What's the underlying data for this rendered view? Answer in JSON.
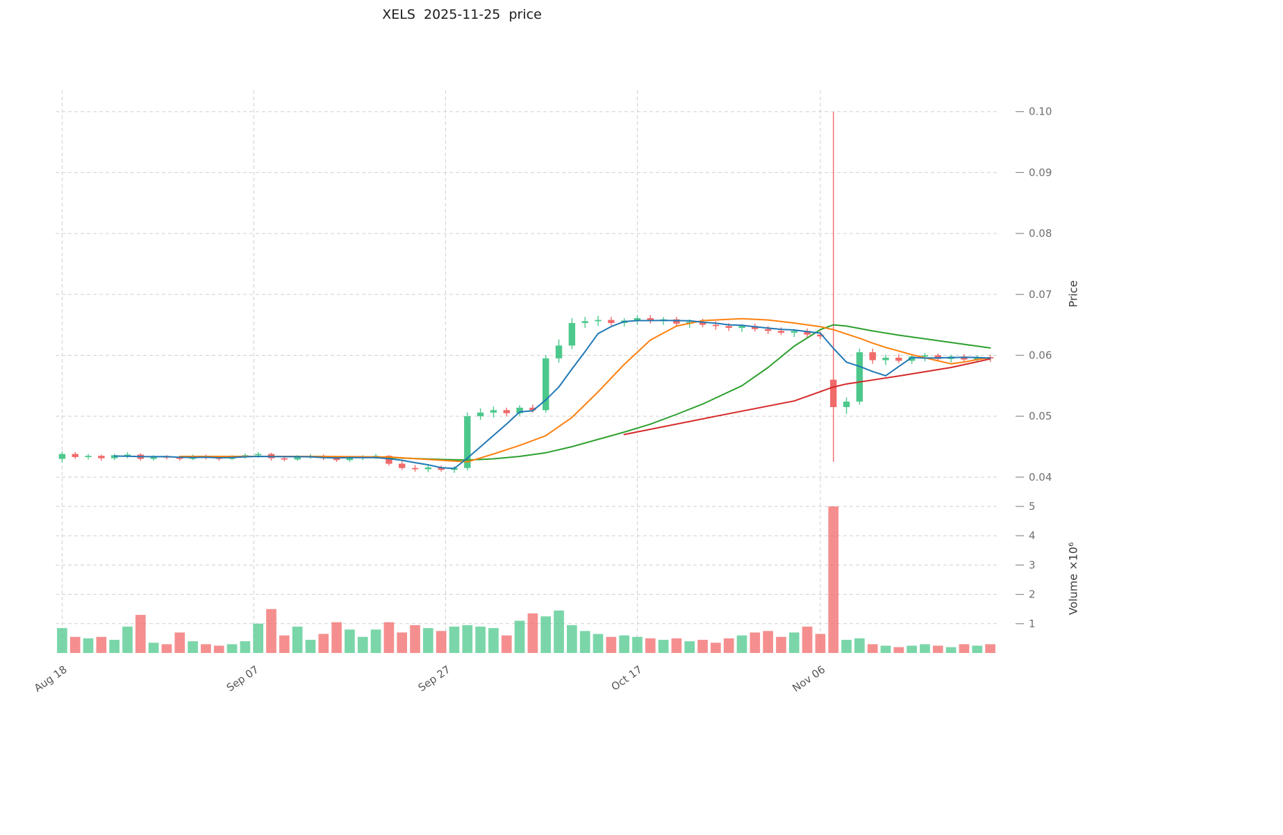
{
  "title": "XELS  2025-11-25  price",
  "axes": {
    "price_label": "Price",
    "volume_label": "Volume ×10⁶",
    "price_ticks": [
      0.04,
      0.05,
      0.06,
      0.07,
      0.08,
      0.09,
      0.1
    ],
    "price_ylim": [
      0.0385,
      0.1035
    ],
    "volume_ticks": [
      1,
      2,
      3,
      4,
      5
    ],
    "volume_ylim": [
      0,
      5.45
    ],
    "x_ticks": [
      {
        "label": "Aug 18",
        "index": 0
      },
      {
        "label": "Sep 07",
        "index": 14.67
      },
      {
        "label": "Sep 27",
        "index": 29.33
      },
      {
        "label": "Oct 17",
        "index": 44
      },
      {
        "label": "Nov 06",
        "index": 58
      }
    ],
    "grid": "dashed"
  },
  "colors": {
    "up": "#4dc88c",
    "down": "#f16a6a",
    "ma_fast": "#1f77b4",
    "ma_mid": "#ff7f0e",
    "ma_slow": "#2ca02c",
    "ma_long": "#d62728",
    "grid": "#cfcfcf",
    "tick_label": "#707070",
    "x_tick_label": "#555555",
    "axis_label": "#3a3a3a",
    "title": "#1a1a1a",
    "background": "#ffffff"
  },
  "chart_data": {
    "type": "candlestick",
    "symbol": "XELS",
    "as_of_date": "2025-11-25",
    "title": "XELS  2025-11-25  price",
    "ylabel_price": "Price",
    "ylabel_volume": "Volume ×10⁶",
    "dates": [
      "2025-08-18",
      "2025-08-19",
      "2025-08-20",
      "2025-08-21",
      "2025-08-22",
      "2025-08-25",
      "2025-08-26",
      "2025-08-27",
      "2025-08-28",
      "2025-08-29",
      "2025-09-01",
      "2025-09-02",
      "2025-09-03",
      "2025-09-04",
      "2025-09-05",
      "2025-09-08",
      "2025-09-09",
      "2025-09-10",
      "2025-09-11",
      "2025-09-12",
      "2025-09-15",
      "2025-09-16",
      "2025-09-17",
      "2025-09-18",
      "2025-09-19",
      "2025-09-22",
      "2025-09-23",
      "2025-09-24",
      "2025-09-25",
      "2025-09-26",
      "2025-09-29",
      "2025-09-30",
      "2025-10-01",
      "2025-10-02",
      "2025-10-03",
      "2025-10-06",
      "2025-10-07",
      "2025-10-08",
      "2025-10-09",
      "2025-10-10",
      "2025-10-13",
      "2025-10-14",
      "2025-10-15",
      "2025-10-16",
      "2025-10-17",
      "2025-10-20",
      "2025-10-21",
      "2025-10-22",
      "2025-10-23",
      "2025-10-24",
      "2025-10-27",
      "2025-10-28",
      "2025-10-29",
      "2025-10-30",
      "2025-10-31",
      "2025-11-03",
      "2025-11-04",
      "2025-11-05",
      "2025-11-06",
      "2025-11-07",
      "2025-11-10",
      "2025-11-11",
      "2025-11-12",
      "2025-11-13",
      "2025-11-14",
      "2025-11-17",
      "2025-11-18",
      "2025-11-19",
      "2025-11-20",
      "2025-11-21",
      "2025-11-24",
      "2025-11-25"
    ],
    "open": [
      0.043,
      0.0438,
      0.0433,
      0.0435,
      0.0431,
      0.0436,
      0.0437,
      0.043,
      0.0434,
      0.0432,
      0.043,
      0.0435,
      0.0432,
      0.043,
      0.0434,
      0.0436,
      0.0438,
      0.0431,
      0.0429,
      0.0434,
      0.0435,
      0.0431,
      0.0428,
      0.0432,
      0.0434,
      0.0435,
      0.0422,
      0.0415,
      0.0413,
      0.0416,
      0.0412,
      0.0415,
      0.05,
      0.0506,
      0.051,
      0.0505,
      0.0514,
      0.051,
      0.0595,
      0.0616,
      0.0653,
      0.0656,
      0.0658,
      0.0653,
      0.0657,
      0.0661,
      0.0656,
      0.0659,
      0.0652,
      0.0655,
      0.065,
      0.0648,
      0.0645,
      0.0648,
      0.0643,
      0.064,
      0.0637,
      0.064,
      0.0634,
      0.056,
      0.0515,
      0.0524,
      0.0605,
      0.0592,
      0.0596,
      0.0591,
      0.0598,
      0.06,
      0.0594,
      0.0598,
      0.0593,
      0.0597
    ],
    "high": [
      0.0442,
      0.0441,
      0.0438,
      0.0437,
      0.0438,
      0.0441,
      0.0439,
      0.0436,
      0.0436,
      0.0435,
      0.0437,
      0.0437,
      0.0434,
      0.0436,
      0.0439,
      0.0441,
      0.044,
      0.0434,
      0.0436,
      0.0438,
      0.0437,
      0.0433,
      0.0434,
      0.0436,
      0.0438,
      0.0436,
      0.0426,
      0.042,
      0.0419,
      0.0419,
      0.0418,
      0.0506,
      0.0513,
      0.0516,
      0.0514,
      0.0518,
      0.0519,
      0.06,
      0.0626,
      0.0661,
      0.0663,
      0.0665,
      0.0663,
      0.0661,
      0.0666,
      0.0666,
      0.0663,
      0.0663,
      0.0659,
      0.066,
      0.0656,
      0.0653,
      0.0651,
      0.0652,
      0.0648,
      0.0646,
      0.0643,
      0.0644,
      0.0639,
      0.1,
      0.0531,
      0.0611,
      0.0611,
      0.0601,
      0.0602,
      0.0601,
      0.0604,
      0.0603,
      0.0601,
      0.0602,
      0.06,
      0.0601
    ],
    "low": [
      0.0424,
      0.043,
      0.0429,
      0.0427,
      0.0428,
      0.0431,
      0.0427,
      0.0427,
      0.0429,
      0.0427,
      0.0428,
      0.0429,
      0.0427,
      0.0428,
      0.043,
      0.0432,
      0.0427,
      0.0426,
      0.0427,
      0.043,
      0.0428,
      0.0425,
      0.0425,
      0.0428,
      0.043,
      0.0419,
      0.0412,
      0.0409,
      0.0408,
      0.0409,
      0.0407,
      0.0411,
      0.0494,
      0.0498,
      0.05,
      0.0501,
      0.0506,
      0.0506,
      0.0588,
      0.061,
      0.0645,
      0.0648,
      0.0649,
      0.0647,
      0.065,
      0.0652,
      0.065,
      0.0648,
      0.0645,
      0.0646,
      0.0642,
      0.064,
      0.0638,
      0.0639,
      0.0635,
      0.0633,
      0.063,
      0.0629,
      0.0626,
      0.0425,
      0.0504,
      0.0519,
      0.0586,
      0.0584,
      0.0587,
      0.0586,
      0.059,
      0.0591,
      0.0588,
      0.059,
      0.0588,
      0.0589
    ],
    "close": [
      0.0438,
      0.0433,
      0.0435,
      0.0431,
      0.0436,
      0.0437,
      0.043,
      0.0434,
      0.0432,
      0.043,
      0.0435,
      0.0432,
      0.043,
      0.0434,
      0.0436,
      0.0438,
      0.0431,
      0.0429,
      0.0434,
      0.0435,
      0.0431,
      0.0428,
      0.0432,
      0.0434,
      0.0435,
      0.0422,
      0.0415,
      0.0413,
      0.0416,
      0.0412,
      0.0415,
      0.05,
      0.0506,
      0.051,
      0.0505,
      0.0514,
      0.051,
      0.0595,
      0.0616,
      0.0653,
      0.0656,
      0.0658,
      0.0653,
      0.0657,
      0.0661,
      0.0656,
      0.0659,
      0.0652,
      0.0655,
      0.065,
      0.0648,
      0.0645,
      0.0648,
      0.0643,
      0.064,
      0.0637,
      0.064,
      0.0634,
      0.0631,
      0.0515,
      0.0524,
      0.0605,
      0.0592,
      0.0596,
      0.0591,
      0.0598,
      0.06,
      0.0594,
      0.0598,
      0.0593,
      0.0597,
      0.0595
    ],
    "volume_millions": [
      0.85,
      0.55,
      0.5,
      0.55,
      0.45,
      0.9,
      1.3,
      0.35,
      0.3,
      0.7,
      0.4,
      0.3,
      0.25,
      0.3,
      0.4,
      1.0,
      1.5,
      0.6,
      0.9,
      0.45,
      0.65,
      1.05,
      0.8,
      0.55,
      0.8,
      1.05,
      0.7,
      0.95,
      0.85,
      0.75,
      0.9,
      0.95,
      0.9,
      0.85,
      0.6,
      1.1,
      1.35,
      1.25,
      1.45,
      0.95,
      0.75,
      0.65,
      0.55,
      0.6,
      0.55,
      0.5,
      0.45,
      0.5,
      0.4,
      0.45,
      0.35,
      0.5,
      0.6,
      0.7,
      0.75,
      0.55,
      0.7,
      0.9,
      0.65,
      5.0,
      0.45,
      0.5,
      0.3,
      0.25,
      0.2,
      0.25,
      0.3,
      0.25,
      0.2,
      0.3,
      0.25,
      0.3
    ],
    "volume_unit": 1000000,
    "moving_averages": {
      "fast_sma_window": 5,
      "mid_keypoints": [
        [
          9,
          0.0434
        ],
        [
          20,
          0.0434
        ],
        [
          25,
          0.0433
        ],
        [
          28,
          0.0429
        ],
        [
          31,
          0.0425
        ],
        [
          33,
          0.0438
        ],
        [
          35,
          0.0452
        ],
        [
          37,
          0.0468
        ],
        [
          39,
          0.0498
        ],
        [
          41,
          0.054
        ],
        [
          43,
          0.0585
        ],
        [
          45,
          0.0625
        ],
        [
          47,
          0.0648
        ],
        [
          49,
          0.0657
        ],
        [
          52,
          0.066
        ],
        [
          54,
          0.0658
        ],
        [
          56,
          0.0653
        ],
        [
          58,
          0.0647
        ],
        [
          59,
          0.0642
        ],
        [
          60,
          0.0635
        ],
        [
          61,
          0.0628
        ],
        [
          62,
          0.062
        ],
        [
          63,
          0.0613
        ],
        [
          64,
          0.0607
        ],
        [
          65,
          0.0601
        ],
        [
          66,
          0.0596
        ],
        [
          67,
          0.0591
        ],
        [
          68,
          0.0586
        ],
        [
          69,
          0.0589
        ],
        [
          70,
          0.0593
        ],
        [
          71,
          0.0596
        ]
      ],
      "slow_keypoints": [
        [
          19,
          0.0434
        ],
        [
          25,
          0.0432
        ],
        [
          29,
          0.0429
        ],
        [
          31,
          0.0428
        ],
        [
          33,
          0.043
        ],
        [
          35,
          0.0434
        ],
        [
          37,
          0.044
        ],
        [
          39,
          0.045
        ],
        [
          41,
          0.0462
        ],
        [
          43,
          0.0474
        ],
        [
          45,
          0.0487
        ],
        [
          47,
          0.0503
        ],
        [
          49,
          0.052
        ],
        [
          52,
          0.055
        ],
        [
          54,
          0.058
        ],
        [
          56,
          0.0615
        ],
        [
          58,
          0.0642
        ],
        [
          59,
          0.065
        ],
        [
          60,
          0.0648
        ],
        [
          62,
          0.064
        ],
        [
          64,
          0.0633
        ],
        [
          66,
          0.0627
        ],
        [
          68,
          0.0621
        ],
        [
          70,
          0.0615
        ],
        [
          71,
          0.0612
        ]
      ],
      "long_keypoints": [
        [
          43,
          0.047
        ],
        [
          50,
          0.05
        ],
        [
          56,
          0.0525
        ],
        [
          59,
          0.0548
        ],
        [
          60,
          0.0553
        ],
        [
          64,
          0.0566
        ],
        [
          68,
          0.058
        ],
        [
          71,
          0.0594
        ]
      ]
    }
  }
}
